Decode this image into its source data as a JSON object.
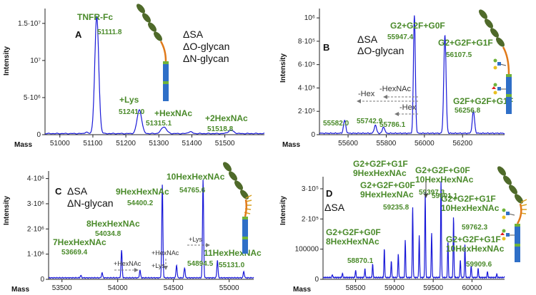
{
  "chart_data": [
    {
      "type": "line",
      "panel": "A",
      "xlabel": "Mass",
      "ylabel": "Intensity",
      "xlim": [
        50955,
        51620
      ],
      "ylim": [
        0,
        17000000
      ],
      "xticks": [
        51000,
        51100,
        51200,
        51300,
        51400,
        51500
      ],
      "yticks": [
        {
          "v": 0,
          "label": "0"
        },
        {
          "v": 5000000,
          "label": "5·10⁶"
        },
        {
          "v": 10000000,
          "label": "10⁷"
        },
        {
          "v": 15000000,
          "label": "1.5·10⁷"
        }
      ],
      "conditions": [
        "ΔSA",
        "ΔO-glycan",
        "ΔN-glycan"
      ],
      "baseline": 150000,
      "peaks": [
        {
          "x": 51080,
          "y": 200000,
          "w": 4
        },
        {
          "x": 51111.8,
          "y": 15800000,
          "w": 6
        },
        {
          "x": 51241.0,
          "y": 3200000,
          "w": 7
        },
        {
          "x": 51315.1,
          "y": 900000,
          "w": 8
        },
        {
          "x": 51395,
          "y": 250000,
          "w": 6
        },
        {
          "x": 51518.8,
          "y": 450000,
          "w": 8
        }
      ],
      "labels": [
        {
          "name": "TNFR-Fc",
          "mass": "51111.8"
        },
        {
          "name": "+Lys",
          "mass": "51241.0"
        },
        {
          "name": "+HexNAc",
          "mass": "51315.1"
        },
        {
          "name": "+2HexNAc",
          "mass": "51518.8"
        }
      ]
    },
    {
      "type": "line",
      "panel": "B",
      "xlabel": "Mass",
      "ylabel": "Intensity",
      "xlim": [
        55450,
        56420
      ],
      "ylim": [
        0,
        1080000
      ],
      "xticks": [
        55600,
        55800,
        56000,
        56200
      ],
      "yticks": [
        {
          "v": 0,
          "label": "0"
        },
        {
          "v": 200000,
          "label": "2·10⁵"
        },
        {
          "v": 400000,
          "label": "4·10⁵"
        },
        {
          "v": 600000,
          "label": "6·10⁵"
        },
        {
          "v": 800000,
          "label": "8·10⁵"
        },
        {
          "v": 1000000,
          "label": "10⁶"
        }
      ],
      "conditions": [
        "ΔSA",
        "ΔO-glycan"
      ],
      "baseline": 12000,
      "peaks": [
        {
          "x": 55582.0,
          "y": 110000,
          "w": 6
        },
        {
          "x": 55742.9,
          "y": 70000,
          "w": 6
        },
        {
          "x": 55786.1,
          "y": 55000,
          "w": 6
        },
        {
          "x": 55947.4,
          "y": 1010000,
          "w": 5
        },
        {
          "x": 56107.5,
          "y": 840000,
          "w": 6
        },
        {
          "x": 56256.8,
          "y": 190000,
          "w": 6
        }
      ],
      "labels": [
        {
          "name": "G2+G2F+G0F",
          "mass": "55947.4"
        },
        {
          "name": "G2+G2F+G1F",
          "mass": "56107.5"
        },
        {
          "name": "G2F+G2F+G1F",
          "mass": "56256.8"
        },
        {
          "name": "",
          "mass": "55582.0"
        },
        {
          "name": "",
          "mass": "55742.9"
        },
        {
          "name": "",
          "mass": "55786.1"
        }
      ],
      "annotations": [
        "-Hex",
        "-HexNAc",
        "-Hex"
      ]
    },
    {
      "type": "line",
      "panel": "C",
      "xlabel": "Mass",
      "ylabel": "Intensity",
      "xlim": [
        53380,
        55220
      ],
      "ylim": [
        0,
        4300000
      ],
      "xticks": [
        53500,
        54000,
        54500,
        55000
      ],
      "yticks": [
        {
          "v": 0,
          "label": "0"
        },
        {
          "v": 1000000,
          "label": "1·10⁶"
        },
        {
          "v": 2000000,
          "label": "2·10⁶"
        },
        {
          "v": 3000000,
          "label": "3·10⁶"
        },
        {
          "v": 4000000,
          "label": "4·10⁶"
        }
      ],
      "conditions": [
        "ΔSA",
        "ΔN-glycan"
      ],
      "baseline": 60000,
      "peaks": [
        {
          "x": 53669.4,
          "y": 100000,
          "w": 5
        },
        {
          "x": 53860,
          "y": 200000,
          "w": 5
        },
        {
          "x": 54034.8,
          "y": 1100000,
          "w": 5
        },
        {
          "x": 54200,
          "y": 300000,
          "w": 5
        },
        {
          "x": 54400.2,
          "y": 3700000,
          "w": 5
        },
        {
          "x": 54528,
          "y": 500000,
          "w": 5
        },
        {
          "x": 54600,
          "y": 400000,
          "w": 5
        },
        {
          "x": 54765.6,
          "y": 3900000,
          "w": 5
        },
        {
          "x": 54894.5,
          "y": 700000,
          "w": 5
        },
        {
          "x": 55131.0,
          "y": 250000,
          "w": 5
        }
      ],
      "labels": [
        {
          "name": "7HexHexNAc",
          "mass": "53669.4"
        },
        {
          "name": "8HexHexNAc",
          "mass": "54034.8"
        },
        {
          "name": "9HexHexNAc",
          "mass": "54400.2"
        },
        {
          "name": "10HexHexNAc",
          "mass": "54765.6"
        },
        {
          "name": "11HexHexNAc",
          "mass": "55131.0"
        },
        {
          "name": "",
          "mass": "54894.5"
        }
      ],
      "annotations": [
        "+HexNAc",
        "+HexNAc",
        "+Lys",
        "+Lys"
      ]
    },
    {
      "type": "line",
      "panel": "D",
      "xlabel": "Mass",
      "ylabel": "Intensity",
      "xlim": [
        58080,
        60420
      ],
      "ylim": [
        0,
        340000
      ],
      "xticks": [
        58500,
        59000,
        59500,
        60000
      ],
      "yticks": [
        {
          "v": 0,
          "label": "0"
        },
        {
          "v": 100000,
          "label": "100000"
        },
        {
          "v": 200000,
          "label": "2·10⁵"
        },
        {
          "v": 300000,
          "label": "3·10⁵"
        }
      ],
      "conditions": [
        "ΔSA"
      ],
      "baseline": 6000,
      "peaks": [
        {
          "x": 58200,
          "y": 10000,
          "w": 5
        },
        {
          "x": 58330,
          "y": 15000,
          "w": 5
        },
        {
          "x": 58500,
          "y": 25000,
          "w": 5
        },
        {
          "x": 58620,
          "y": 30000,
          "w": 5
        },
        {
          "x": 58720,
          "y": 45000,
          "w": 5
        },
        {
          "x": 58870.1,
          "y": 95000,
          "w": 5
        },
        {
          "x": 58960,
          "y": 55000,
          "w": 5
        },
        {
          "x": 59050,
          "y": 80000,
          "w": 5
        },
        {
          "x": 59140,
          "y": 125000,
          "w": 5
        },
        {
          "x": 59235.8,
          "y": 235000,
          "w": 5
        },
        {
          "x": 59320,
          "y": 140000,
          "w": 5
        },
        {
          "x": 59397.3,
          "y": 280000,
          "w": 5
        },
        {
          "x": 59480,
          "y": 150000,
          "w": 5
        },
        {
          "x": 59601.1,
          "y": 320000,
          "w": 5
        },
        {
          "x": 59690,
          "y": 120000,
          "w": 5
        },
        {
          "x": 59762.3,
          "y": 200000,
          "w": 5
        },
        {
          "x": 59850,
          "y": 60000,
          "w": 5
        },
        {
          "x": 59909.6,
          "y": 110000,
          "w": 5
        },
        {
          "x": 59990,
          "y": 40000,
          "w": 5
        },
        {
          "x": 60080,
          "y": 30000,
          "w": 5
        },
        {
          "x": 60200,
          "y": 20000,
          "w": 5
        },
        {
          "x": 60320,
          "y": 12000,
          "w": 5
        }
      ],
      "labels": [
        {
          "name": "G2+G2F+G0F\n8HexHexNAc",
          "mass": "58870.1"
        },
        {
          "name": "G2+G2F+G0F\n9HexHexNAc",
          "mass": "59235.8"
        },
        {
          "name": "G2+G2F+G1F\n9HexHexNAc",
          "mass": "59397.3"
        },
        {
          "name": "G2+G2F+G0F\n10HexHexNAc",
          "mass": "59601.1"
        },
        {
          "name": "G2+G2F+G1F\n10HexHexNAc",
          "mass": "59762.3"
        },
        {
          "name": "G2+G2F+G1F\n10HexHexNAc",
          "mass": "59909.6"
        }
      ]
    }
  ],
  "colors": {
    "trace": "#1a1ad8",
    "label": "#4a8a2a",
    "bead": "#4f6a2a",
    "domain": "#2f6fc7",
    "tether": "#e07a1a",
    "hinge": "#6fb33a"
  }
}
